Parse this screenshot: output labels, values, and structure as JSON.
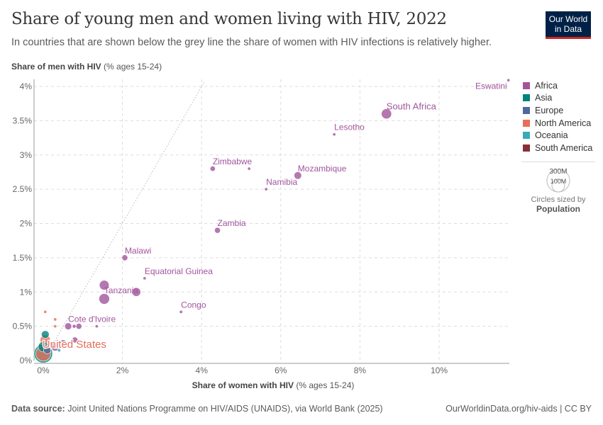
{
  "header": {
    "title": "Share of young men and women living with HIV, 2022",
    "subtitle": "In countries that are shown below the grey line the share of women with HIV infections is relatively higher.",
    "logo": "Our World in Data"
  },
  "footer": {
    "source_label": "Data source:",
    "source": "Joint United Nations Programme on HIV/AIDS (UNAIDS), via World Bank (2025)",
    "url": "OurWorldinData.org/hiv-aids | CC BY"
  },
  "legend": {
    "items": [
      {
        "label": "Africa",
        "color": "#a2559c"
      },
      {
        "label": "Asia",
        "color": "#00847e"
      },
      {
        "label": "Europe",
        "color": "#4c6a9c"
      },
      {
        "label": "North America",
        "color": "#e56e5a"
      },
      {
        "label": "Oceania",
        "color": "#38aaba"
      },
      {
        "label": "South America",
        "color": "#883039"
      }
    ],
    "size": {
      "big": "300M",
      "small": "100M",
      "caption": "Circles sized by",
      "variable": "Population"
    }
  },
  "chart_data": {
    "type": "scatter",
    "title": "Share of young men and women living with HIV, 2022",
    "xlabel": "Share of women with HIV",
    "xlabel_unit": "(% ages 15-24)",
    "ylabel": "Share of men with HIV",
    "ylabel_unit": "(% ages 15-24)",
    "xlim": [
      0,
      11.75
    ],
    "ylim": [
      0,
      4.1
    ],
    "xticks": [
      "0%",
      "2%",
      "4%",
      "6%",
      "8%",
      "10%"
    ],
    "yticks": [
      "0%",
      "0.5%",
      "1%",
      "1.5%",
      "2%",
      "2.5%",
      "3%",
      "3.5%",
      "4%"
    ],
    "grid": true,
    "reference_line": "y = x",
    "legend_placement": "right",
    "points": [
      {
        "name": "Eswatini",
        "label": true,
        "region": "Africa",
        "x": 11.75,
        "y": 4.09,
        "pop": 1.2
      },
      {
        "name": "South Africa",
        "label": true,
        "region": "Africa",
        "x": 8.67,
        "y": 3.6,
        "pop": 60
      },
      {
        "name": "Lesotho",
        "label": true,
        "region": "Africa",
        "x": 7.35,
        "y": 3.3,
        "pop": 2.3
      },
      {
        "name": "Zimbabwe",
        "label": true,
        "region": "Africa",
        "x": 4.28,
        "y": 2.8,
        "pop": 16
      },
      {
        "name": "",
        "region": "Africa",
        "x": 5.2,
        "y": 2.8,
        "pop": 2.5
      },
      {
        "name": "Mozambique",
        "label": true,
        "region": "Africa",
        "x": 6.43,
        "y": 2.7,
        "pop": 33
      },
      {
        "name": "Namibia",
        "label": true,
        "region": "Africa",
        "x": 5.63,
        "y": 2.5,
        "pop": 2.6
      },
      {
        "name": "Zambia",
        "label": true,
        "region": "Africa",
        "x": 4.4,
        "y": 1.9,
        "pop": 20
      },
      {
        "name": "Malawi",
        "label": true,
        "region": "Africa",
        "x": 2.06,
        "y": 1.5,
        "pop": 20
      },
      {
        "name": "Equatorial Guinea",
        "label": true,
        "region": "Africa",
        "x": 2.56,
        "y": 1.2,
        "pop": 1.7
      },
      {
        "name": "",
        "region": "Africa",
        "x": 1.54,
        "y": 1.1,
        "pop": 55
      },
      {
        "name": "Tanzania",
        "label": true,
        "region": "Africa",
        "x": 1.54,
        "y": 0.9,
        "pop": 65
      },
      {
        "name": "",
        "region": "Africa",
        "x": 2.35,
        "y": 1.0,
        "pop": 45
      },
      {
        "name": "Congo",
        "label": true,
        "region": "Africa",
        "x": 3.48,
        "y": 0.71,
        "pop": 6
      },
      {
        "name": "Cote d'Ivoire",
        "label": true,
        "region": "Africa",
        "x": 0.63,
        "y": 0.5,
        "pop": 28
      },
      {
        "name": "",
        "region": "Africa",
        "x": 0.9,
        "y": 0.5,
        "pop": 20
      },
      {
        "name": "",
        "region": "Africa",
        "x": 0.78,
        "y": 0.5,
        "pop": 8
      },
      {
        "name": "",
        "region": "Africa",
        "x": 1.35,
        "y": 0.5,
        "pop": 2
      },
      {
        "name": "",
        "region": "Africa",
        "x": 0.5,
        "y": 0.25,
        "pop": 30
      },
      {
        "name": "",
        "region": "Africa",
        "x": 0.8,
        "y": 0.3,
        "pop": 20
      },
      {
        "name": "",
        "region": "Africa",
        "x": 0.3,
        "y": 0.2,
        "pop": 40
      },
      {
        "name": "",
        "region": "North America",
        "x": 0.05,
        "y": 0.71,
        "pop": 1
      },
      {
        "name": "",
        "region": "North America",
        "x": 0.3,
        "y": 0.6,
        "pop": 1
      },
      {
        "name": "",
        "region": "North America",
        "x": 0.3,
        "y": 0.5,
        "pop": 1
      },
      {
        "name": "United States",
        "label": true,
        "region": "North America",
        "x": 0.05,
        "y": 0.3,
        "pop": 60
      },
      {
        "name": "",
        "region": "North America",
        "x": 0.0,
        "y": 0.1,
        "pop": 130
      },
      {
        "name": "",
        "region": "Asia",
        "x": 0.0,
        "y": 0.1,
        "pop": 200
      },
      {
        "name": "",
        "region": "Asia",
        "x": 0.05,
        "y": 0.38,
        "pop": 35
      },
      {
        "name": "",
        "region": "Asia",
        "x": 0.0,
        "y": 0.2,
        "pop": 60
      },
      {
        "name": "",
        "region": "Europe",
        "x": 0.1,
        "y": 0.15,
        "pop": 30
      },
      {
        "name": "",
        "region": "Oceania",
        "x": 0.4,
        "y": 0.15,
        "pop": 6
      },
      {
        "name": "",
        "region": "South America",
        "x": 0.05,
        "y": 0.2,
        "pop": 10
      },
      {
        "name": "",
        "region": "South America",
        "x": 0.25,
        "y": 0.2,
        "pop": 3
      },
      {
        "name": "",
        "region": "South America",
        "x": 0.4,
        "y": 0.2,
        "pop": 2
      }
    ]
  }
}
